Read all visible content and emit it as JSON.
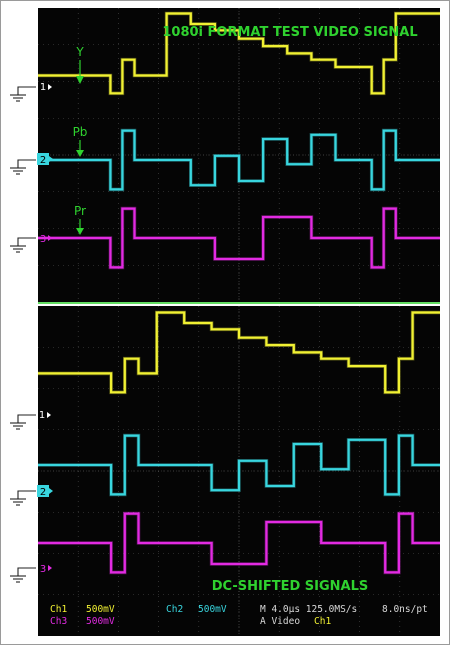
{
  "colors": {
    "ch1": "#f1f133",
    "ch2": "#39d6df",
    "ch3": "#e22be2",
    "annotation": "#2fd22f",
    "screen": "#050505",
    "grid": "#6a6a6a"
  },
  "chart_data": [
    {
      "type": "line",
      "title": "1080i FORMAT TEST VIDEO SIGNAL",
      "xlabel": "",
      "ylabel": "",
      "grid": true,
      "channel_markers": [
        "1",
        "2",
        "3"
      ],
      "signal_labels": [
        "Y",
        "Pb",
        "Pr"
      ],
      "series": [
        {
          "name": "Y",
          "channel": "1",
          "x": [
            0,
            9,
            9,
            10.5,
            10.5,
            12,
            12,
            16,
            16,
            19,
            19,
            22,
            22,
            25,
            25,
            28,
            28,
            31,
            31,
            34,
            34,
            37,
            37,
            41.5,
            41.5,
            43,
            43,
            44.5,
            44.5,
            50
          ],
          "values": [
            0.55,
            0.55,
            -0.3,
            -0.3,
            1.3,
            1.3,
            0.55,
            0.55,
            3.5,
            3.5,
            3,
            3,
            2.7,
            2.7,
            2.3,
            2.3,
            1.95,
            1.95,
            1.6,
            1.6,
            1.3,
            1.3,
            0.95,
            0.95,
            -0.3,
            -0.3,
            1.3,
            1.3,
            3.5,
            3.5
          ]
        },
        {
          "name": "Pb",
          "channel": "2",
          "x": [
            0,
            9,
            9,
            10.5,
            10.5,
            12,
            12,
            19,
            19,
            22,
            22,
            25,
            25,
            28,
            28,
            31,
            31,
            34,
            34,
            37,
            37,
            41.5,
            41.5,
            43,
            43,
            44.5,
            44.5,
            50
          ],
          "values": [
            0,
            0,
            -1.4,
            -1.4,
            1.4,
            1.4,
            0,
            0,
            -1.2,
            -1.2,
            0.2,
            0.2,
            -1,
            -1,
            1,
            1,
            -0.2,
            -0.2,
            1.2,
            1.2,
            0,
            0,
            -1.4,
            -1.4,
            1.4,
            1.4,
            0,
            0
          ]
        },
        {
          "name": "Pr",
          "channel": "3",
          "x": [
            0,
            9,
            9,
            10.5,
            10.5,
            12,
            12,
            22,
            22,
            28,
            28,
            34,
            34,
            41.5,
            41.5,
            43,
            43,
            44.5,
            44.5,
            50
          ],
          "values": [
            0,
            0,
            -1.4,
            -1.4,
            1.4,
            1.4,
            0,
            0,
            -1,
            -1,
            1,
            1,
            0,
            0,
            -1.4,
            -1.4,
            1.4,
            1.4,
            0,
            0
          ]
        }
      ]
    },
    {
      "type": "line",
      "title": "DC-SHIFTED SIGNALS",
      "xlabel": "",
      "ylabel": "",
      "grid": true,
      "channel_markers": [
        "1",
        "2",
        "3"
      ],
      "readout": {
        "ch1_label": "Ch1",
        "ch1_scale": "500mV",
        "ch2_label": "Ch2",
        "ch2_scale": "500mV",
        "ch3_label": "Ch3",
        "ch3_scale": "500mV",
        "timebase": "M 4.0µs 125.0MS/s",
        "record": "8.0ns/pt",
        "trigger_mode": "A Video",
        "trigger_source": "Ch1"
      },
      "series": [
        {
          "name": "Ch1",
          "channel": "1",
          "x": [
            0,
            8,
            8,
            9.5,
            9.5,
            11,
            11,
            13,
            13,
            16,
            16,
            19,
            19,
            22,
            22,
            25,
            25,
            28,
            28,
            31,
            31,
            34,
            34,
            38,
            38,
            39.5,
            39.5,
            41,
            41,
            44
          ],
          "values": [
            0.6,
            0.6,
            -0.3,
            -0.3,
            1.3,
            1.3,
            0.6,
            0.6,
            3.5,
            3.5,
            3,
            3,
            2.7,
            2.7,
            2.3,
            2.3,
            1.95,
            1.95,
            1.6,
            1.6,
            1.3,
            1.3,
            0.95,
            0.95,
            -0.3,
            -0.3,
            1.3,
            1.3,
            3.5,
            3.5
          ]
        },
        {
          "name": "Ch2",
          "channel": "2",
          "x": [
            0,
            8,
            8,
            9.5,
            9.5,
            11,
            11,
            19,
            19,
            22,
            22,
            25,
            25,
            28,
            28,
            31,
            31,
            34,
            34,
            38,
            38,
            39.5,
            39.5,
            41,
            41,
            44
          ],
          "values": [
            0,
            0,
            -1.4,
            -1.4,
            1.4,
            1.4,
            0,
            0,
            -1.2,
            -1.2,
            0.2,
            0.2,
            -1,
            -1,
            1,
            1,
            -0.2,
            -0.2,
            1.2,
            1.2,
            -1.4,
            -1.4,
            1.4,
            1.4,
            0,
            0
          ]
        },
        {
          "name": "Ch3",
          "channel": "3",
          "x": [
            0,
            8,
            8,
            9.5,
            9.5,
            11,
            11,
            19,
            19,
            25,
            25,
            31,
            31,
            38,
            38,
            39.5,
            39.5,
            41,
            41,
            44
          ],
          "values": [
            0,
            0,
            -1.4,
            -1.4,
            1.4,
            1.4,
            0,
            0,
            -1,
            -1,
            1,
            1,
            0,
            0,
            -1.4,
            -1.4,
            1.4,
            1.4,
            0,
            0
          ]
        }
      ]
    }
  ]
}
